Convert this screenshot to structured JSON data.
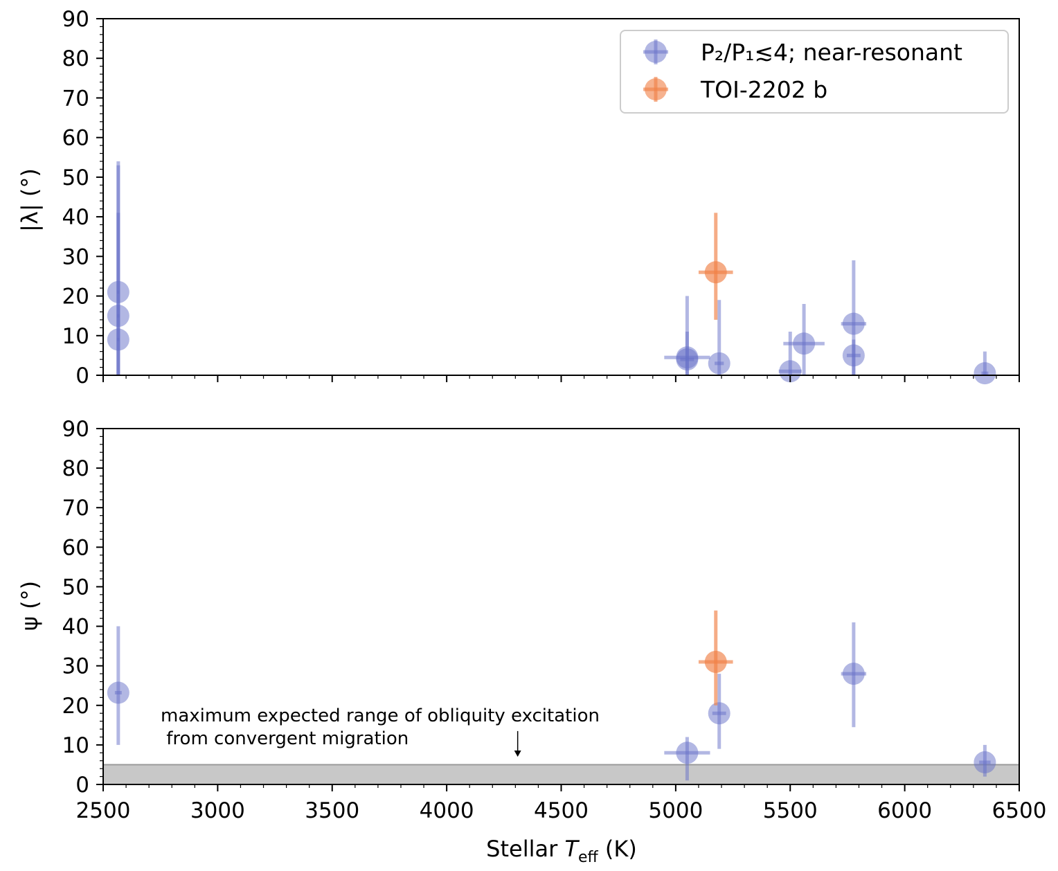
{
  "chart_data": [
    {
      "type": "scatter",
      "panel": "top",
      "ylabel": "|λ| (°)",
      "xlim": [
        2500,
        6500
      ],
      "ylim": [
        0,
        90
      ],
      "xticks": [
        2500,
        3000,
        3500,
        4000,
        4500,
        5000,
        5500,
        6000,
        6500
      ],
      "yticks": [
        0,
        10,
        20,
        30,
        40,
        50,
        60,
        70,
        80,
        90
      ],
      "legend": {
        "position": "top-right",
        "entries": [
          {
            "label": "P₂/P₁≲4; near-resonant",
            "color": "#6670c8"
          },
          {
            "label": "TOI-2202 b",
            "color": "#f07f45"
          }
        ]
      },
      "series": [
        {
          "name": "P₂/P₁≲4; near-resonant",
          "color": "#6670c8",
          "points": [
            {
              "x": 2566,
              "y": 21,
              "xerr": 5,
              "ylo": 0,
              "yhi": 54
            },
            {
              "x": 2566,
              "y": 15,
              "xerr": 5,
              "ylo": 0,
              "yhi": 41
            },
            {
              "x": 2566,
              "y": 9,
              "xerr": 5,
              "ylo": 0,
              "yhi": 53
            },
            {
              "x": 5050,
              "y": 4.5,
              "xerr": 100,
              "ylo": 0,
              "yhi": 20
            },
            {
              "x": 5050,
              "y": 4,
              "xerr": 30,
              "ylo": 0,
              "yhi": 11
            },
            {
              "x": 5190,
              "y": 3,
              "xerr": 20,
              "ylo": 0,
              "yhi": 19
            },
            {
              "x": 5500,
              "y": 1,
              "xerr": 50,
              "ylo": 0,
              "yhi": 11
            },
            {
              "x": 5560,
              "y": 8,
              "xerr": 90,
              "ylo": 0,
              "yhi": 18
            },
            {
              "x": 5777,
              "y": 13,
              "xerr": 55,
              "ylo": 0,
              "yhi": 29
            },
            {
              "x": 5777,
              "y": 5,
              "xerr": 30,
              "ylo": 0,
              "yhi": 9
            },
            {
              "x": 6350,
              "y": 0.5,
              "xerr": 15,
              "ylo": 0,
              "yhi": 6
            }
          ]
        },
        {
          "name": "TOI-2202 b",
          "color": "#f07f45",
          "points": [
            {
              "x": 5175,
              "y": 26,
              "xerr": 75,
              "ylo": 14,
              "yhi": 41
            }
          ]
        }
      ]
    },
    {
      "type": "scatter",
      "panel": "bottom",
      "ylabel": "ψ (°)",
      "xlabel": "Stellar T_eff (K)",
      "xlabel_main": "Stellar ",
      "xlabel_var": "T",
      "xlabel_sub": "eff",
      "xlabel_unit": " (K)",
      "xlim": [
        2500,
        6500
      ],
      "ylim": [
        0,
        90
      ],
      "xticks": [
        2500,
        3000,
        3500,
        4000,
        4500,
        5000,
        5500,
        6000,
        6500
      ],
      "xtick_labels": [
        "2500",
        "3000",
        "3500",
        "4000",
        "4500",
        "5000",
        "5500",
        "6000",
        "6500"
      ],
      "yticks": [
        0,
        10,
        20,
        30,
        40,
        50,
        60,
        70,
        80,
        90
      ],
      "shaded_band": {
        "ymin": 0,
        "ymax": 5,
        "color": "#c8c8c8"
      },
      "annotation": {
        "lines": [
          "maximum expected range of obliquity excitation",
          " from convergent migration"
        ],
        "arrow_x": 4310,
        "arrow_from_y": 13.5,
        "arrow_to_y": 7
      },
      "series": [
        {
          "name": "P₂/P₁≲4; near-resonant",
          "color": "#6670c8",
          "points": [
            {
              "x": 2566,
              "y": 23.2,
              "xerr": 15,
              "ylo": 10,
              "yhi": 40
            },
            {
              "x": 5050,
              "y": 8,
              "xerr": 100,
              "ylo": 1,
              "yhi": 12
            },
            {
              "x": 5190,
              "y": 18,
              "xerr": 30,
              "ylo": 9,
              "yhi": 28
            },
            {
              "x": 5777,
              "y": 28,
              "xerr": 55,
              "ylo": 14.5,
              "yhi": 41
            },
            {
              "x": 6350,
              "y": 5.6,
              "xerr": 25,
              "ylo": 2,
              "yhi": 10
            }
          ]
        },
        {
          "name": "TOI-2202 b",
          "color": "#f07f45",
          "points": [
            {
              "x": 5175,
              "y": 31,
              "xerr": 75,
              "ylo": 20,
              "yhi": 44
            }
          ]
        }
      ]
    }
  ]
}
